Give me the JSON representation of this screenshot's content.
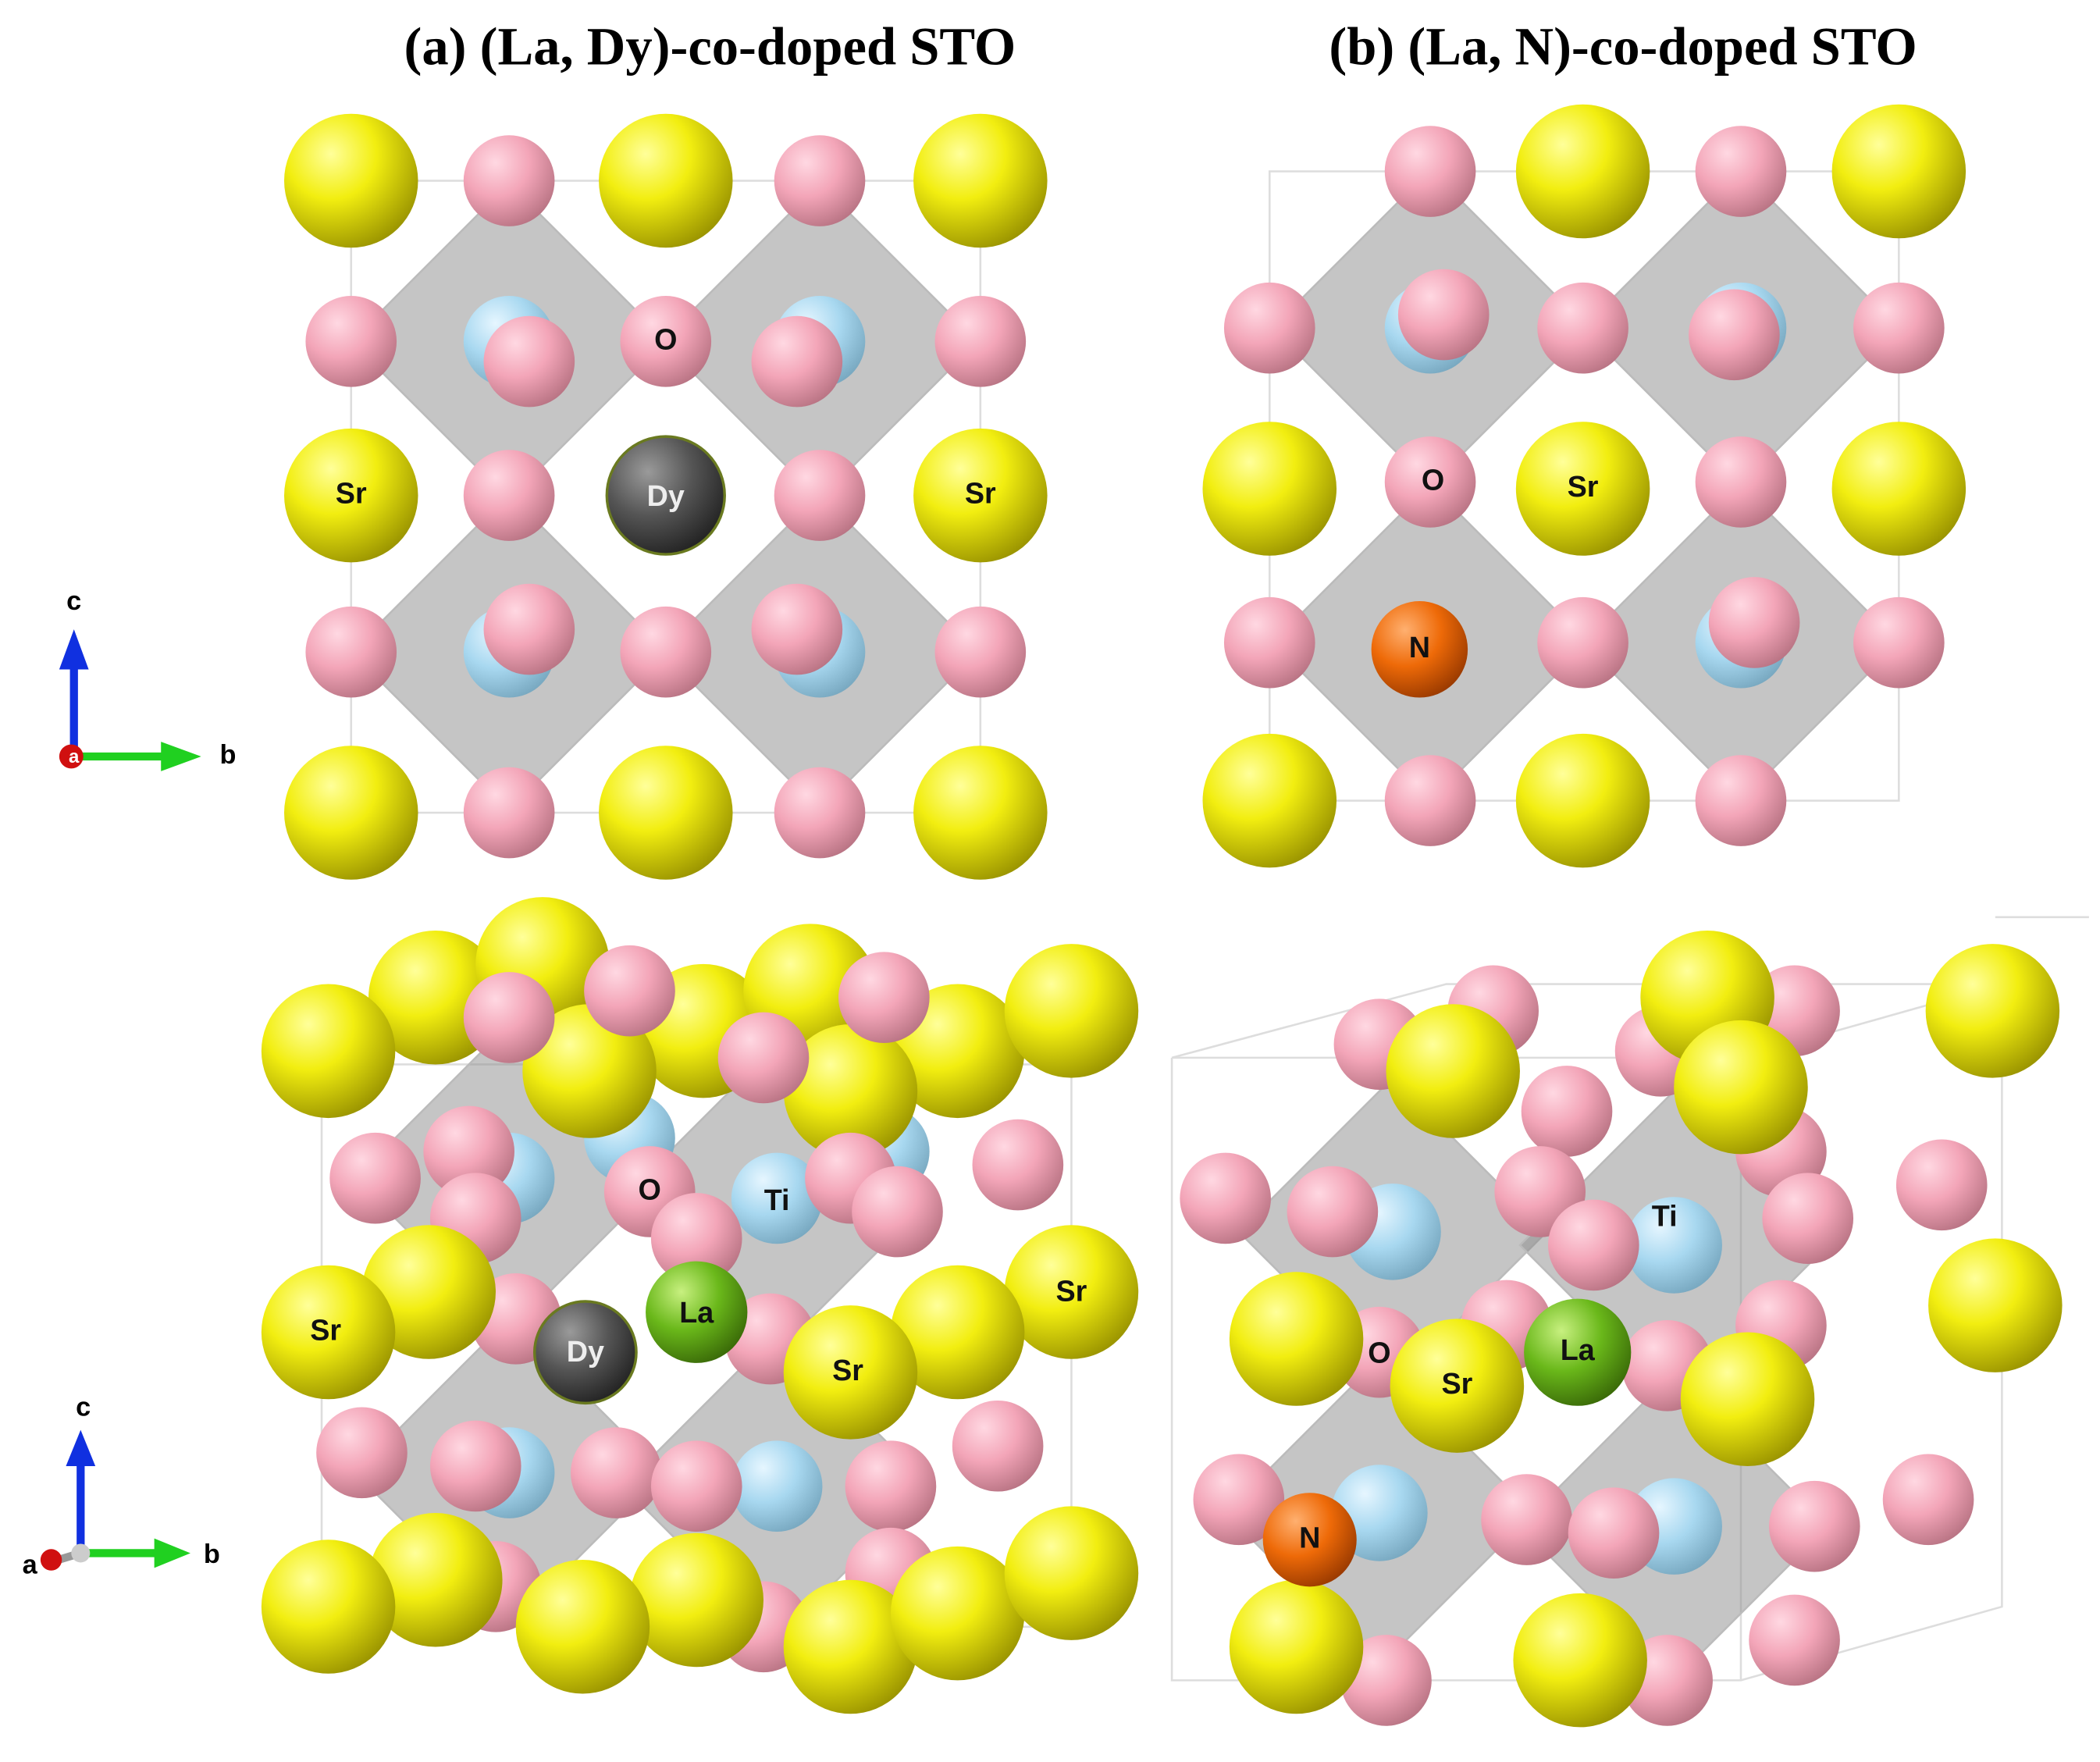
{
  "panels": [
    {
      "title": "(a) (La, Dy)-co-doped STO",
      "top_labels": [
        "O",
        "Sr",
        "Dy",
        "Sr"
      ],
      "bottom_labels": [
        "O",
        "Ti",
        "Sr",
        "La",
        "Dy",
        "Sr",
        "Sr"
      ]
    },
    {
      "title": "(b) (La, N)-co-doped STO",
      "top_labels": [
        "O",
        "Sr",
        "N"
      ],
      "bottom_labels": [
        "Ti",
        "O",
        "Sr",
        "La",
        "N"
      ]
    }
  ],
  "axis_labels": [
    [
      "c",
      "a",
      "b"
    ],
    [
      "c",
      "a",
      "b"
    ]
  ]
}
